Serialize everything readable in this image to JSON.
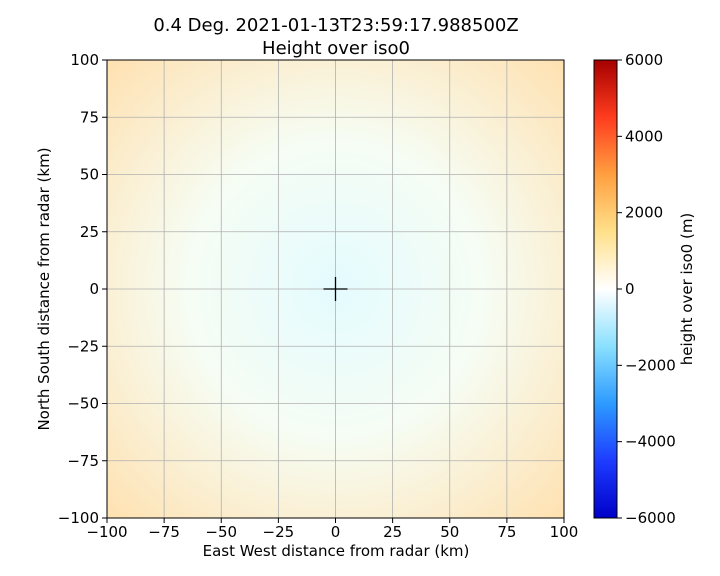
{
  "chart_data": {
    "type": "heatmap",
    "title_line1": "0.4 Deg. 2021-01-13T23:59:17.988500Z",
    "title_line2": "Height over iso0",
    "xlabel": "East West distance from radar (km)",
    "ylabel": "North South distance from radar (km)",
    "xlim": [
      -100,
      100
    ],
    "ylim": [
      -100,
      100
    ],
    "xticks": [
      -100,
      -75,
      -50,
      -25,
      0,
      25,
      50,
      75,
      100
    ],
    "yticks": [
      -100,
      -75,
      -50,
      -25,
      0,
      25,
      50,
      75,
      100
    ],
    "xtick_labels": [
      "−100",
      "−75",
      "−50",
      "−25",
      "0",
      "25",
      "50",
      "75",
      "100"
    ],
    "ytick_labels": [
      "−100",
      "−75",
      "−50",
      "−25",
      "0",
      "25",
      "50",
      "75",
      "100"
    ],
    "grid": true,
    "radar_marker": {
      "x": 0,
      "y": 0,
      "symbol": "+"
    },
    "field": {
      "center_value_m": -700,
      "corner_value_m": 1300,
      "color_center": "#e4fbff",
      "color_edge": "#ffe0ae"
    },
    "colorbar": {
      "label": "height over iso0 (m)",
      "range": [
        -6000,
        6000
      ],
      "ticks": [
        6000,
        4000,
        2000,
        0,
        -2000,
        -4000,
        -6000
      ],
      "tick_labels": [
        "6000",
        "4000",
        "2000",
        "0",
        "−2000",
        "−4000",
        "−6000"
      ],
      "colormap": [
        "#0000c8",
        "#1e3cff",
        "#2d9bff",
        "#8ae0ff",
        "#ffffff",
        "#ffe08a",
        "#ffa040",
        "#ff3c1e",
        "#a50000"
      ]
    }
  }
}
